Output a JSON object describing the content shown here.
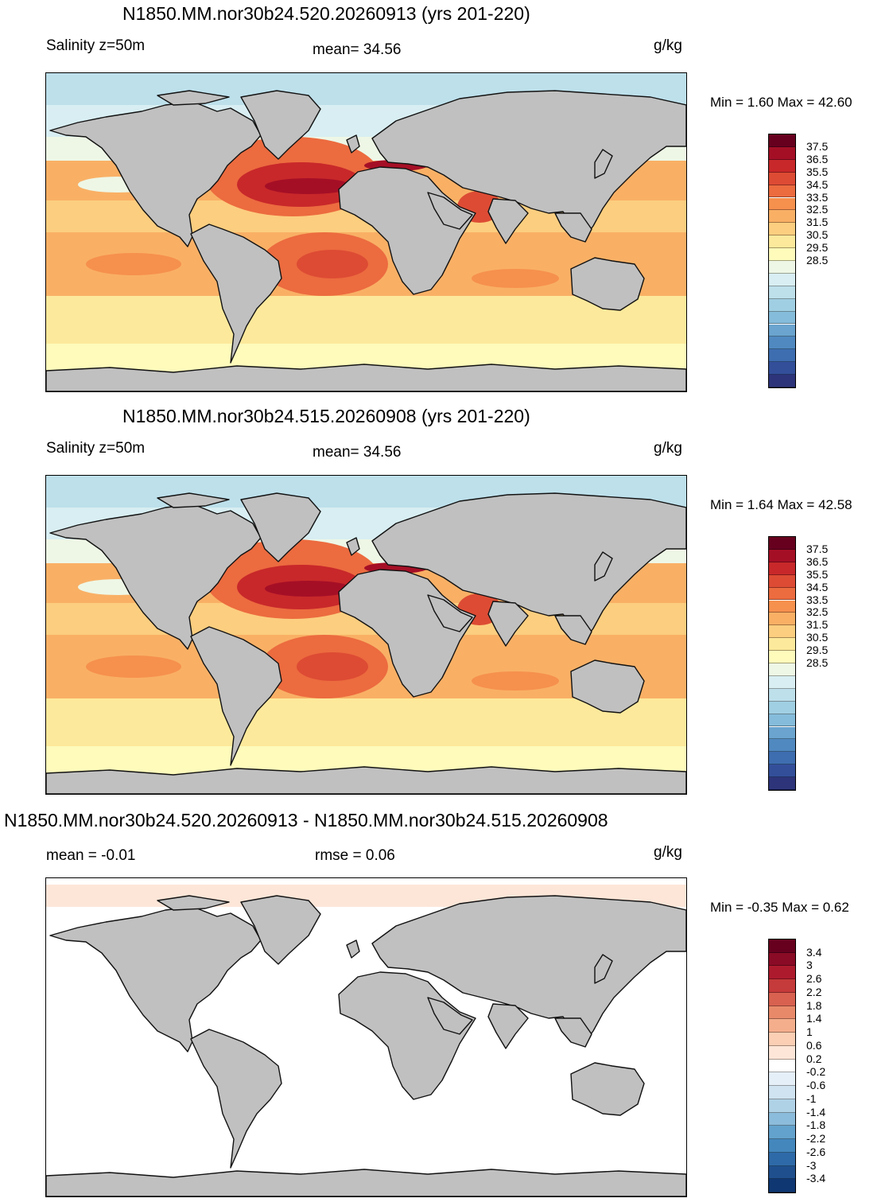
{
  "panels": [
    {
      "title": "N1850.MM.nor30b24.520.20260913 (yrs 201-220)",
      "left_label": "Salinity z=50m",
      "center_label": "mean=  34.56",
      "units": "g/kg",
      "minmax": "Min =   1.60 Max =  42.60",
      "field": "absolute",
      "colorbar": {
        "labels": [
          "37.5",
          "36.5",
          "35.5",
          "34.5",
          "33.5",
          "32.5",
          "31.5",
          "30.5",
          "29.5",
          "28.5"
        ],
        "colors": [
          "#67001f",
          "#a50f26",
          "#c8282a",
          "#dd4b34",
          "#ec6b3f",
          "#f6904d",
          "#f9b065",
          "#fcce7f",
          "#fde99b",
          "#fefbbb",
          "#eef7e6",
          "#d8eef2",
          "#bde0eb",
          "#a0cfe3",
          "#85bcdb",
          "#6aa4cf",
          "#5089c0",
          "#3e6db0",
          "#334f9a",
          "#2d3479"
        ]
      }
    },
    {
      "title": "N1850.MM.nor30b24.515.20260908 (yrs 201-220)",
      "left_label": "Salinity z=50m",
      "center_label": "mean=  34.56",
      "units": "g/kg",
      "minmax": "Min =   1.64 Max =  42.58",
      "field": "absolute",
      "colorbar": {
        "labels": [
          "37.5",
          "36.5",
          "35.5",
          "34.5",
          "33.5",
          "32.5",
          "31.5",
          "30.5",
          "29.5",
          "28.5"
        ],
        "colors": [
          "#67001f",
          "#a50f26",
          "#c8282a",
          "#dd4b34",
          "#ec6b3f",
          "#f6904d",
          "#f9b065",
          "#fcce7f",
          "#fde99b",
          "#fefbbb",
          "#eef7e6",
          "#d8eef2",
          "#bde0eb",
          "#a0cfe3",
          "#85bcdb",
          "#6aa4cf",
          "#5089c0",
          "#3e6db0",
          "#334f9a",
          "#2d3479"
        ]
      }
    },
    {
      "title": "N1850.MM.nor30b24.520.20260913 - N1850.MM.nor30b24.515.20260908",
      "left_label": "mean =  -0.01",
      "center_label": "rmse =    0.06",
      "units": "g/kg",
      "minmax": "Min =  -0.35 Max =   0.62",
      "field": "difference",
      "colorbar": {
        "labels": [
          "3.4",
          "3",
          "2.6",
          "2.2",
          "1.8",
          "1.4",
          "1",
          "0.6",
          "0.2",
          "-0.2",
          "-0.6",
          "-1",
          "-1.4",
          "-1.8",
          "-2.2",
          "-2.6",
          "-3",
          "-3.4"
        ],
        "colors": [
          "#67001f",
          "#8a0b25",
          "#ae1a2d",
          "#c53a3a",
          "#d86150",
          "#e88a6a",
          "#f4ae8c",
          "#fbcfb4",
          "#fde6d8",
          "#ffffff",
          "#e5eff7",
          "#cfe3f0",
          "#b0d2e7",
          "#8cbcdb",
          "#63a2cc",
          "#4387bd",
          "#2e6aa8",
          "#1f4f8c",
          "#0f3772"
        ]
      }
    }
  ]
}
